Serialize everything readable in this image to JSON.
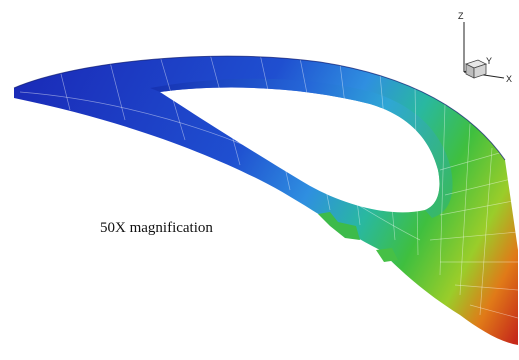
{
  "annotation": {
    "text": "50X magnification"
  },
  "triad": {
    "z_label": "Z",
    "y_label": "Y",
    "x_label": "X"
  },
  "colors": {
    "background": "#ffffff",
    "low": "#1a2bb8",
    "mid_low": "#2f8fe0",
    "mid": "#29b8a0",
    "mid_high": "#3fbf3f",
    "high": "#9acd2a",
    "very_high": "#e07a18",
    "max": "#c62a1a",
    "mesh_line": "#ffffff"
  },
  "legend": {
    "show": false
  }
}
